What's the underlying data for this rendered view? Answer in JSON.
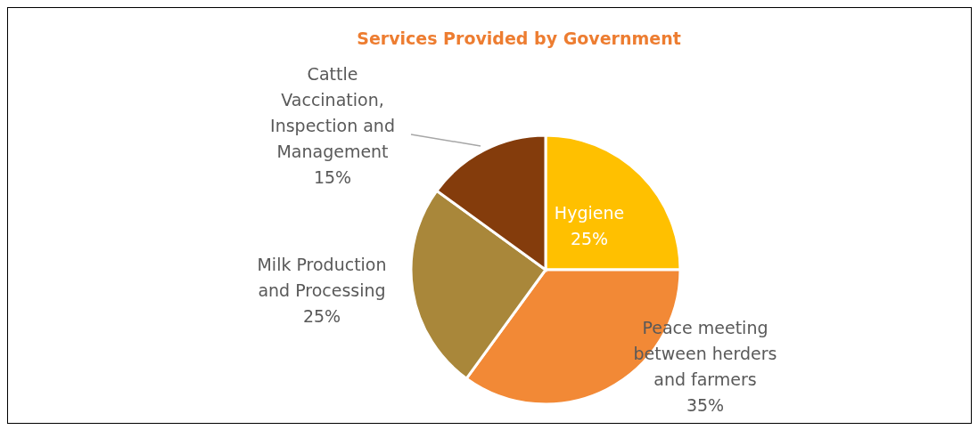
{
  "chart_data": {
    "type": "pie",
    "title": "Services Provided by Government",
    "categories": [
      "Hygiene",
      "Peace meeting between herders and farmers",
      "Milk Production and Processing",
      "Cattle Vaccination, Inspection and Management"
    ],
    "values": [
      25,
      35,
      25,
      15
    ],
    "value_labels": [
      "25%",
      "35%",
      "25%",
      "15%"
    ],
    "colors": [
      "#ffc000",
      "#f28936",
      "#a9873a",
      "#843c0c"
    ]
  }
}
